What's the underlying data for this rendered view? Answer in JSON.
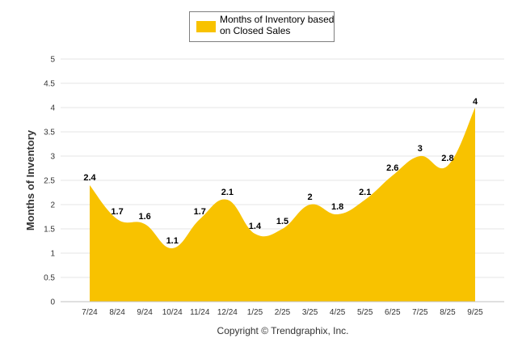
{
  "chart_data": {
    "type": "area",
    "title": "",
    "xlabel": "",
    "ylabel": "Months of Inventory",
    "ylim": [
      0,
      5
    ],
    "yticks": [
      "0",
      "0.5",
      "1",
      "1.5",
      "2",
      "2.5",
      "3",
      "3.5",
      "4",
      "4.5",
      "5"
    ],
    "ytick_values": [
      0,
      0.5,
      1,
      1.5,
      2,
      2.5,
      3,
      3.5,
      4,
      4.5,
      5
    ],
    "categories": [
      "7/24",
      "8/24",
      "9/24",
      "10/24",
      "11/24",
      "12/24",
      "1/25",
      "2/25",
      "3/25",
      "4/25",
      "5/25",
      "6/25",
      "7/25",
      "8/25",
      "9/25"
    ],
    "series": [
      {
        "name_line1": "Months of Inventory based",
        "name_line2": "on Closed Sales",
        "values": [
          2.4,
          1.7,
          1.6,
          1.1,
          1.7,
          2.1,
          1.4,
          1.5,
          2,
          1.8,
          2.1,
          2.6,
          3,
          2.8,
          4
        ],
        "labels": [
          "2.4",
          "1.7",
          "1.6",
          "1.1",
          "1.7",
          "2.1",
          "1.4",
          "1.5",
          "2",
          "1.8",
          "2.1",
          "2.6",
          "3",
          "2.8",
          "4"
        ],
        "color": "#f8c200"
      }
    ],
    "grid": true,
    "legend_position": "top-center"
  },
  "footer": {
    "copyright": "Copyright © Trendgraphix, Inc."
  },
  "colors": {
    "area": "#f8c200",
    "grid": "#e6e6e6",
    "text": "#333333"
  }
}
